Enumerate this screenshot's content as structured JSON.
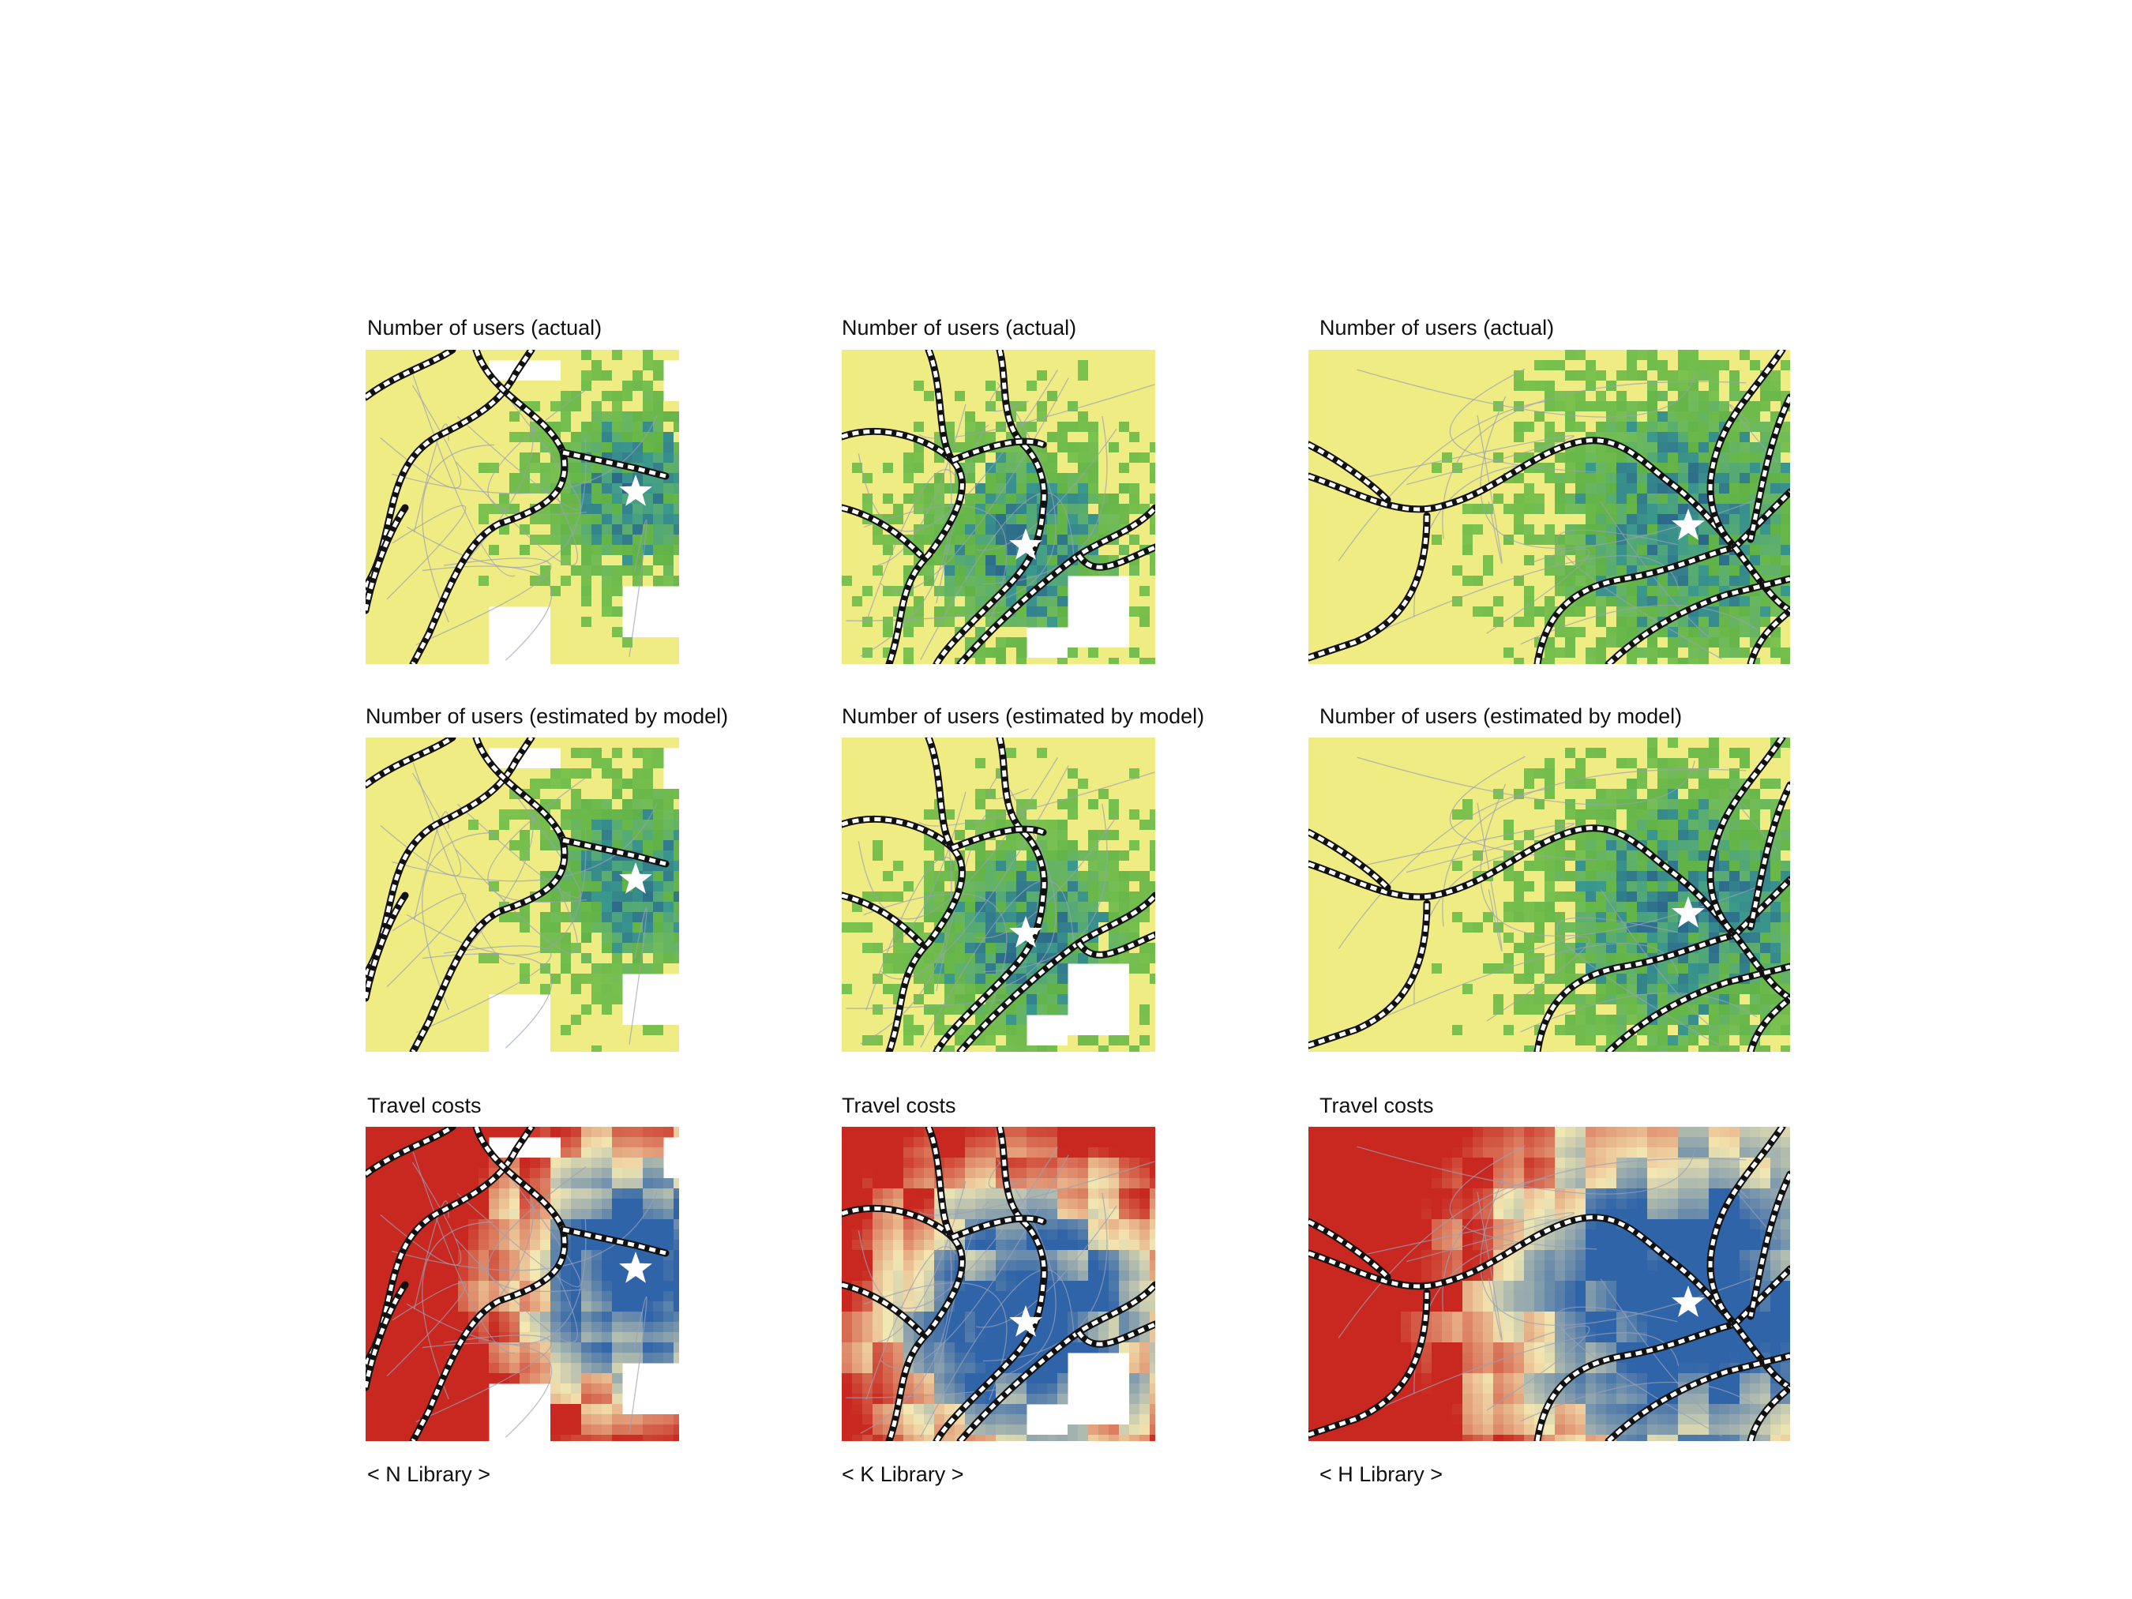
{
  "figure": {
    "row_titles": {
      "actual": "Number of users (actual)",
      "estimated": "Number of users (estimated by model)",
      "cost": "Travel costs"
    },
    "libraries": [
      {
        "id": "N",
        "caption": "< N Library >"
      },
      {
        "id": "K",
        "caption": "< K Library >"
      },
      {
        "id": "H",
        "caption": "< H Library >"
      }
    ],
    "colors": {
      "users_low": "#f0ec84",
      "users_mid": "#7cc24e",
      "users_high": "#3b9a8c",
      "users_max": "#1f3e8a",
      "cost_low": "#2f64a8",
      "cost_mid": "#f3e8b2",
      "cost_high": "#c8281f",
      "railway": "#111111",
      "road": "#9aa0b8",
      "library_marker": "#ffffff"
    },
    "marker_icon": "star-icon"
  }
}
